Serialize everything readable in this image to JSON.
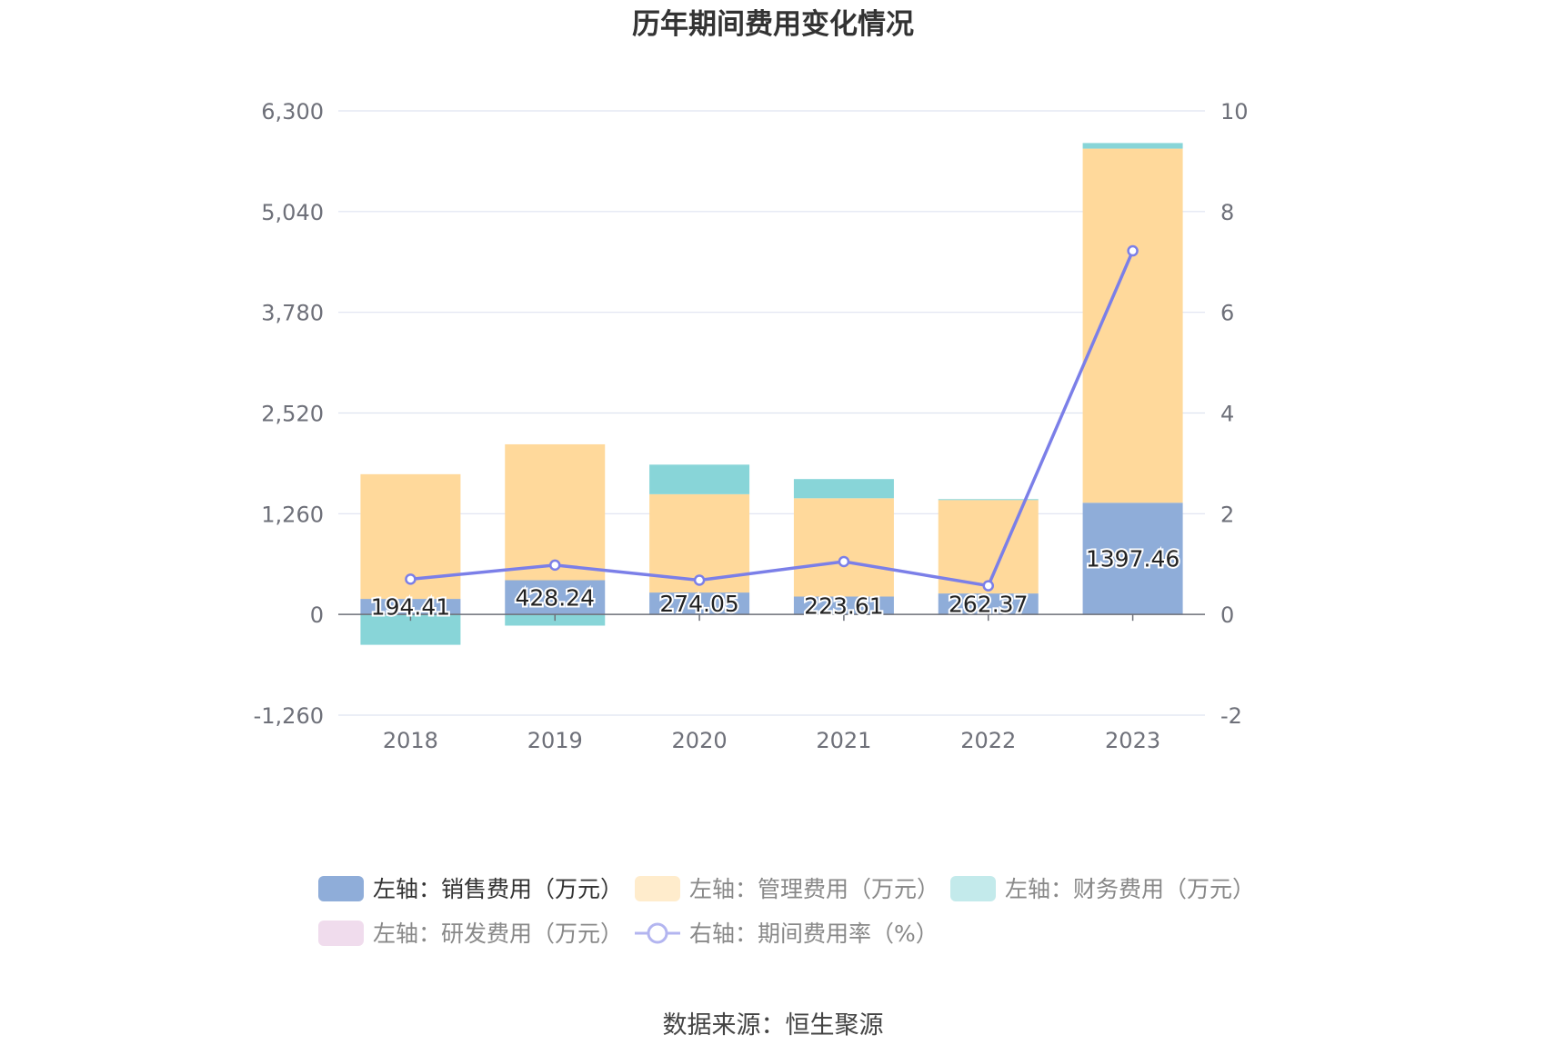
{
  "chart_data": {
    "type": "bar",
    "title": "历年期间费用变化情况",
    "categories": [
      "2018",
      "2019",
      "2020",
      "2021",
      "2022",
      "2023"
    ],
    "y_left": {
      "ticks": [
        "6,300",
        "5,040",
        "3,780",
        "2,520",
        "1,260",
        "0",
        "-1,260"
      ],
      "ylim": [
        -1260,
        6300
      ]
    },
    "y_right": {
      "ticks": [
        "10",
        "8",
        "6",
        "4",
        "2",
        "0",
        "-2"
      ],
      "ylim": [
        -2,
        10
      ]
    },
    "series": [
      {
        "name": "左轴：销售费用（万元）",
        "kind": "bar",
        "color": "#8fadd9",
        "values": [
          194.41,
          428.24,
          274.05,
          223.61,
          262.37,
          1397.46
        ],
        "labels": [
          "194.41",
          "428.24",
          "274.05",
          "223.61",
          "262.37",
          "1397.46"
        ]
      },
      {
        "name": "左轴：管理费用（万元）",
        "kind": "bar",
        "color": "#ffd99b",
        "values": [
          1560,
          1700,
          1230,
          1230,
          1170,
          4430
        ]
      },
      {
        "name": "左轴：财务费用（万元）",
        "kind": "bar",
        "color": "#88d5d8",
        "values": [
          -380,
          -140,
          370,
          240,
          10,
          70
        ]
      },
      {
        "name": "左轴：研发费用（万元）",
        "kind": "bar",
        "color": "#f0dced",
        "values": [
          0,
          0,
          0,
          0,
          0,
          0
        ]
      },
      {
        "name": "右轴：期间费用率（%）",
        "kind": "line",
        "color": "#7b7fe8",
        "values": [
          0.7,
          0.98,
          0.68,
          1.05,
          0.57,
          7.22
        ]
      }
    ],
    "grid": true,
    "legend_position": "bottom"
  },
  "source": "数据来源：恒生聚源"
}
